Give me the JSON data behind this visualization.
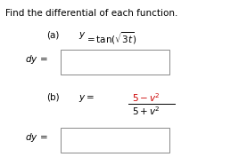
{
  "title": "Find the differential of each function.",
  "bg_color": "#ffffff",
  "text_color": "#000000",
  "red_color": "#cc0000",
  "box_edge_color": "#888888",
  "title_fontsize": 7.5,
  "body_fontsize": 7.5
}
